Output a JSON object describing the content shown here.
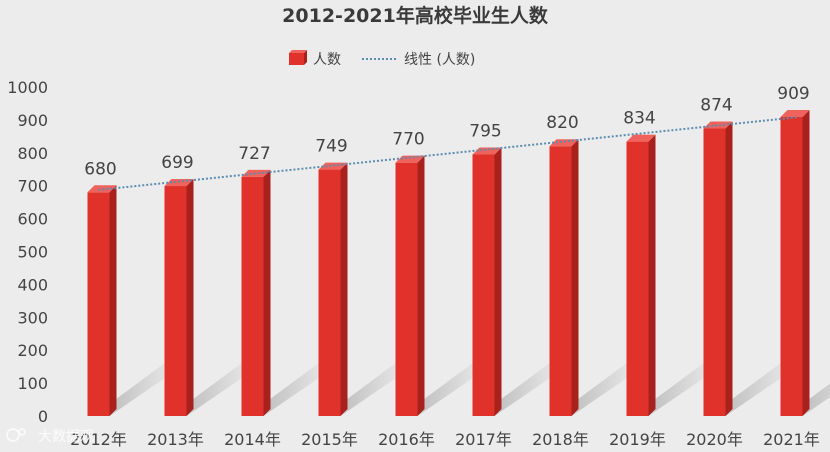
{
  "chart_data": {
    "type": "bar",
    "title": "2012-2021年高校毕业生人数",
    "categories": [
      "2012年",
      "2013年",
      "2014年",
      "2015年",
      "2016年",
      "2017年",
      "2018年",
      "2019年",
      "2020年",
      "2021年"
    ],
    "series": [
      {
        "name": "人数",
        "values": [
          680,
          699,
          727,
          749,
          770,
          795,
          820,
          834,
          874,
          909
        ],
        "color": "#e0322b"
      }
    ],
    "trendline": {
      "name": "线性 (人数)",
      "style": "dotted",
      "color": "#5b8db0"
    },
    "yticks": [
      0,
      100,
      200,
      300,
      400,
      500,
      600,
      700,
      800,
      900,
      1000
    ],
    "ylim": [
      0,
      1000
    ],
    "legend_position": "top",
    "grid": false,
    "data_labels": true
  },
  "watermark": {
    "text": "大数据观",
    "icon": "logo-icon"
  }
}
